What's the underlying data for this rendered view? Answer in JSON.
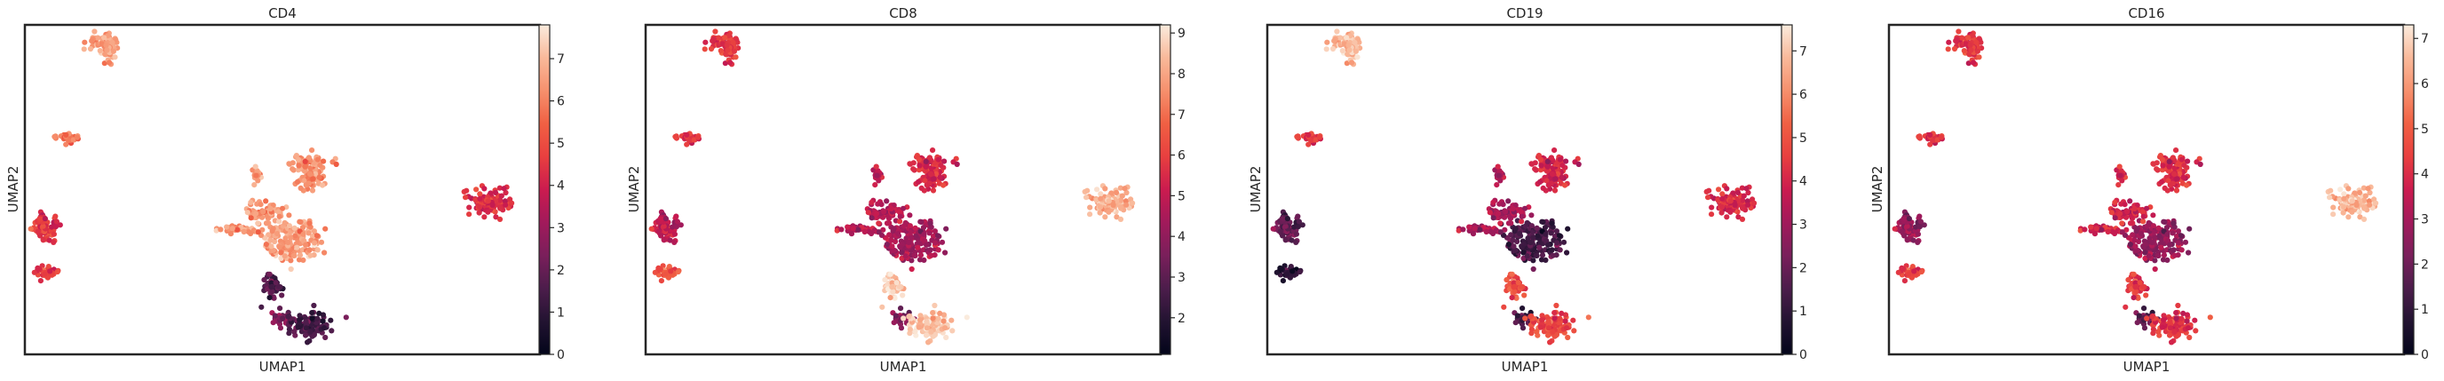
{
  "chart_data": [
    {
      "type": "scatter",
      "title": "CD4",
      "xlabel": "UMAP1",
      "ylabel": "UMAP2",
      "colorbar": {
        "ticks": [
          0,
          1,
          2,
          3,
          4,
          5,
          6,
          7
        ],
        "min": 0,
        "max": 7.8
      },
      "grid": false,
      "cluster_levels": [
        6.5,
        5.7,
        4.6,
        4.5,
        6.3,
        6.5,
        6.4,
        1.5,
        2.6,
        4.6
      ]
    },
    {
      "type": "scatter",
      "title": "CD8",
      "xlabel": "UMAP1",
      "ylabel": "UMAP2",
      "colorbar": {
        "ticks": [
          2,
          3,
          4,
          5,
          6,
          7,
          8,
          9
        ],
        "min": 1.1,
        "max": 9.2
      },
      "grid": false,
      "cluster_levels": [
        5.8,
        5.6,
        5.0,
        8.4,
        5.5,
        4.4,
        4.8,
        8.6,
        3.8,
        6.5
      ]
    },
    {
      "type": "scatter",
      "title": "CD19",
      "xlabel": "UMAP1",
      "ylabel": "UMAP2",
      "colorbar": {
        "ticks": [
          0,
          1,
          2,
          3,
          4,
          5,
          6,
          7
        ],
        "min": 0,
        "max": 7.6
      },
      "grid": false,
      "cluster_levels": [
        6.8,
        4.3,
        2.0,
        4.3,
        4.0,
        1.4,
        3.2,
        4.8,
        1.5,
        0.9
      ]
    },
    {
      "type": "scatter",
      "title": "CD16",
      "xlabel": "UMAP1",
      "ylabel": "UMAP2",
      "colorbar": {
        "ticks": [
          0,
          1,
          2,
          3,
          4,
          5,
          6,
          7
        ],
        "min": 0,
        "max": 7.3
      },
      "grid": false,
      "cluster_levels": [
        4.2,
        4.0,
        2.8,
        6.7,
        4.1,
        2.7,
        3.8,
        4.2,
        1.8,
        4.4
      ]
    }
  ],
  "colors": {
    "colormap": [
      "#03051a",
      "#221331",
      "#4c1d4b",
      "#7a1f5b",
      "#a11a5b",
      "#cb1b4f",
      "#e83f3f",
      "#f06043",
      "#f6906d",
      "#f9b99a",
      "#faebdd"
    ],
    "axes": "#262626"
  }
}
